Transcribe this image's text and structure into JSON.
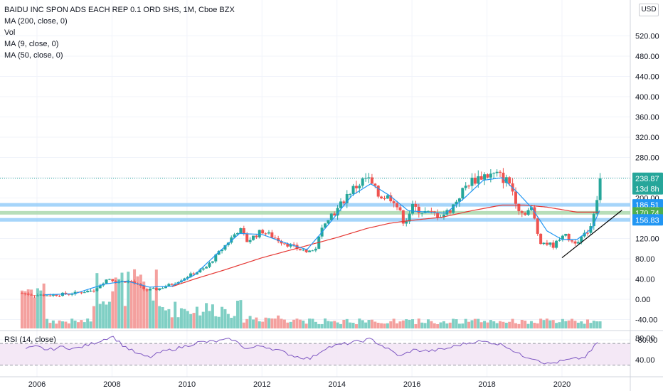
{
  "legend": {
    "title": "BAIDU INC SPON ADS EACH REP 0.1 ORD SHS, 1M, Cboe BZX",
    "ind1": "MA (200, close, 0)",
    "ind2": "Vol",
    "ind3": "MA (9, close, 0)",
    "ind4": "MA (50, close, 0)"
  },
  "currency": "USD",
  "rsi_label": "RSI (14, close)",
  "colors": {
    "up": "#26a69a",
    "down": "#ef5350",
    "vol_up": "#7fcfc4",
    "vol_down": "#f4a09e",
    "ma9": "#2196f3",
    "ma50": "#e53935",
    "rsi": "#7e57c2",
    "rsi_band": "#f3e5f5",
    "level_blue": "#90caf9",
    "level_green": "#a5d6a7",
    "trendline": "#000000"
  },
  "price_badges": [
    {
      "label": "238.87",
      "value": 238.87,
      "bg": "#26a69a"
    },
    {
      "label": "13d 8h",
      "value": 218,
      "bg": "#26a69a"
    },
    {
      "label": "186.51",
      "value": 186.51,
      "bg": "#2196f3"
    },
    {
      "label": "170.74",
      "value": 170.74,
      "bg": "#4caf50"
    },
    {
      "label": "156.83",
      "value": 156.83,
      "bg": "#2196f3"
    }
  ],
  "chart_data": {
    "type": "candlestick",
    "title": "BAIDU INC SPON ADS EACH REP 0.1 ORD SHS, 1M, Cboe BZX",
    "y_ticks": [
      "520.00",
      "480.00",
      "440.00",
      "400.00",
      "360.00",
      "320.00",
      "280.00",
      "240.00",
      "200.00",
      "160.00",
      "120.00",
      "80.00",
      "40.00",
      "0.00",
      "-40.00",
      "-80.00"
    ],
    "y_tick_values": [
      520,
      480,
      440,
      400,
      360,
      320,
      280,
      240,
      200,
      160,
      120,
      80,
      40,
      0,
      -40,
      -80
    ],
    "rsi_ticks": [
      "80.00",
      "40.00"
    ],
    "rsi_tick_values": [
      80,
      40
    ],
    "x_ticks": [
      "2006",
      "2008",
      "2010",
      "2012",
      "2014",
      "2016",
      "2018",
      "2020"
    ],
    "x_tick_values": [
      2006,
      2008,
      2010,
      2012,
      2014,
      2016,
      2018,
      2020
    ],
    "levels": [
      186.51,
      170.74,
      156.83
    ],
    "last_price": 238.87,
    "trendline": [
      [
        2020.0,
        82
      ],
      [
        2021.6,
        176
      ]
    ],
    "anchors": [
      [
        2005.6,
        12
      ],
      [
        2006.0,
        8
      ],
      [
        2006.5,
        9
      ],
      [
        2007.0,
        12
      ],
      [
        2007.5,
        18
      ],
      [
        2007.9,
        42
      ],
      [
        2008.1,
        35
      ],
      [
        2008.5,
        36
      ],
      [
        2008.9,
        18
      ],
      [
        2009.2,
        20
      ],
      [
        2009.6,
        30
      ],
      [
        2010.0,
        45
      ],
      [
        2010.5,
        62
      ],
      [
        2011.0,
        105
      ],
      [
        2011.4,
        140
      ],
      [
        2011.6,
        115
      ],
      [
        2012.0,
        135
      ],
      [
        2012.5,
        115
      ],
      [
        2013.0,
        98
      ],
      [
        2013.4,
        95
      ],
      [
        2013.7,
        160
      ],
      [
        2014.0,
        175
      ],
      [
        2014.3,
        210
      ],
      [
        2014.8,
        240
      ],
      [
        2015.1,
        205
      ],
      [
        2015.5,
        200
      ],
      [
        2015.8,
        150
      ],
      [
        2016.0,
        182
      ],
      [
        2016.4,
        170
      ],
      [
        2016.8,
        166
      ],
      [
        2017.0,
        175
      ],
      [
        2017.5,
        230
      ],
      [
        2017.9,
        245
      ],
      [
        2018.3,
        245
      ],
      [
        2018.6,
        230
      ],
      [
        2018.9,
        170
      ],
      [
        2019.2,
        178
      ],
      [
        2019.4,
        115
      ],
      [
        2019.8,
        105
      ],
      [
        2020.0,
        130
      ],
      [
        2020.3,
        112
      ],
      [
        2020.6,
        126
      ],
      [
        2020.8,
        150
      ],
      [
        2020.9,
        196
      ],
      [
        2021.0,
        240
      ]
    ],
    "ma9_anchors": [
      [
        2006.2,
        9
      ],
      [
        2007.0,
        11
      ],
      [
        2007.8,
        30
      ],
      [
        2008.4,
        36
      ],
      [
        2009.0,
        24
      ],
      [
        2009.6,
        26
      ],
      [
        2010.2,
        48
      ],
      [
        2010.8,
        90
      ],
      [
        2011.4,
        130
      ],
      [
        2012.0,
        128
      ],
      [
        2012.6,
        112
      ],
      [
        2013.2,
        98
      ],
      [
        2013.8,
        150
      ],
      [
        2014.4,
        205
      ],
      [
        2014.9,
        228
      ],
      [
        2015.4,
        205
      ],
      [
        2015.9,
        175
      ],
      [
        2016.4,
        172
      ],
      [
        2016.9,
        170
      ],
      [
        2017.4,
        200
      ],
      [
        2017.9,
        235
      ],
      [
        2018.4,
        240
      ],
      [
        2018.8,
        212
      ],
      [
        2019.2,
        180
      ],
      [
        2019.6,
        135
      ],
      [
        2020.0,
        118
      ],
      [
        2020.4,
        118
      ],
      [
        2020.8,
        140
      ],
      [
        2021.0,
        175
      ]
    ],
    "ma50_anchors": [
      [
        2009.6,
        25
      ],
      [
        2010.2,
        40
      ],
      [
        2011.0,
        58
      ],
      [
        2012.0,
        82
      ],
      [
        2013.0,
        102
      ],
      [
        2014.0,
        122
      ],
      [
        2014.8,
        140
      ],
      [
        2015.4,
        150
      ],
      [
        2016.0,
        156
      ],
      [
        2016.8,
        162
      ],
      [
        2017.6,
        175
      ],
      [
        2018.4,
        186
      ],
      [
        2019.0,
        186
      ],
      [
        2019.6,
        182
      ],
      [
        2020.4,
        172
      ],
      [
        2021.0,
        172
      ]
    ],
    "rsi_anchors": [
      [
        2005.7,
        60
      ],
      [
        2006.0,
        64
      ],
      [
        2006.3,
        58
      ],
      [
        2006.7,
        64
      ],
      [
        2007.0,
        60
      ],
      [
        2007.4,
        68
      ],
      [
        2007.8,
        78
      ],
      [
        2008.0,
        84
      ],
      [
        2008.3,
        66
      ],
      [
        2008.7,
        50
      ],
      [
        2009.0,
        44
      ],
      [
        2009.3,
        54
      ],
      [
        2009.8,
        62
      ],
      [
        2010.3,
        72
      ],
      [
        2010.8,
        74
      ],
      [
        2011.2,
        78
      ],
      [
        2011.6,
        60
      ],
      [
        2012.0,
        66
      ],
      [
        2012.4,
        58
      ],
      [
        2012.9,
        46
      ],
      [
        2013.3,
        42
      ],
      [
        2013.7,
        62
      ],
      [
        2014.1,
        68
      ],
      [
        2014.6,
        74
      ],
      [
        2014.9,
        78
      ],
      [
        2015.3,
        62
      ],
      [
        2015.7,
        46
      ],
      [
        2016.0,
        58
      ],
      [
        2016.5,
        56
      ],
      [
        2016.9,
        60
      ],
      [
        2017.3,
        68
      ],
      [
        2017.7,
        74
      ],
      [
        2018.1,
        72
      ],
      [
        2018.5,
        66
      ],
      [
        2018.9,
        48
      ],
      [
        2019.3,
        42
      ],
      [
        2019.6,
        32
      ],
      [
        2019.9,
        36
      ],
      [
        2020.2,
        40
      ],
      [
        2020.6,
        44
      ],
      [
        2020.8,
        58
      ],
      [
        2021.0,
        78
      ]
    ]
  }
}
